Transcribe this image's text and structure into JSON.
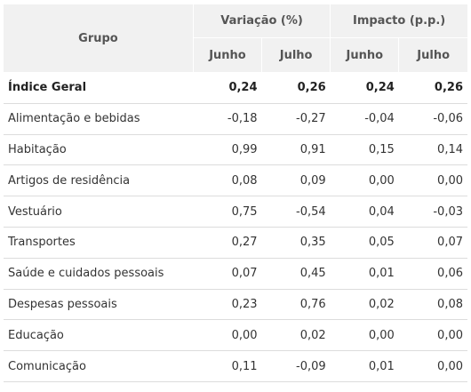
{
  "header": {
    "group_label": "Grupo",
    "variation_label": "Variação (%)",
    "impact_label": "Impacto (p.p.)",
    "sub": [
      "Junho",
      "Julho",
      "Junho",
      "Julho"
    ]
  },
  "rows": [
    {
      "name": "Índice Geral",
      "var_jun": "0,24",
      "var_jul": "0,26",
      "imp_jun": "0,24",
      "imp_jul": "0,26"
    },
    {
      "name": "Alimentação e bebidas",
      "var_jun": "-0,18",
      "var_jul": "-0,27",
      "imp_jun": "-0,04",
      "imp_jul": "-0,06"
    },
    {
      "name": "Habitação",
      "var_jun": "0,99",
      "var_jul": "0,91",
      "imp_jun": "0,15",
      "imp_jul": "0,14"
    },
    {
      "name": "Artigos de residência",
      "var_jun": "0,08",
      "var_jul": "0,09",
      "imp_jun": "0,00",
      "imp_jul": "0,00"
    },
    {
      "name": "Vestuário",
      "var_jun": "0,75",
      "var_jul": "-0,54",
      "imp_jun": "0,04",
      "imp_jul": "-0,03"
    },
    {
      "name": "Transportes",
      "var_jun": "0,27",
      "var_jul": "0,35",
      "imp_jun": "0,05",
      "imp_jul": "0,07"
    },
    {
      "name": "Saúde e cuidados pessoais",
      "var_jun": "0,07",
      "var_jul": "0,45",
      "imp_jun": "0,01",
      "imp_jul": "0,06"
    },
    {
      "name": "Despesas pessoais",
      "var_jun": "0,23",
      "var_jul": "0,76",
      "imp_jun": "0,02",
      "imp_jul": "0,08"
    },
    {
      "name": "Educação",
      "var_jun": "0,00",
      "var_jul": "0,02",
      "imp_jun": "0,00",
      "imp_jul": "0,00"
    },
    {
      "name": "Comunicação",
      "var_jun": "0,11",
      "var_jul": "-0,09",
      "imp_jun": "0,01",
      "imp_jul": "0,00"
    }
  ],
  "colors": {
    "header_bg": "#f1f1f1",
    "row_border": "#dcdcdc",
    "text": "#333333"
  }
}
